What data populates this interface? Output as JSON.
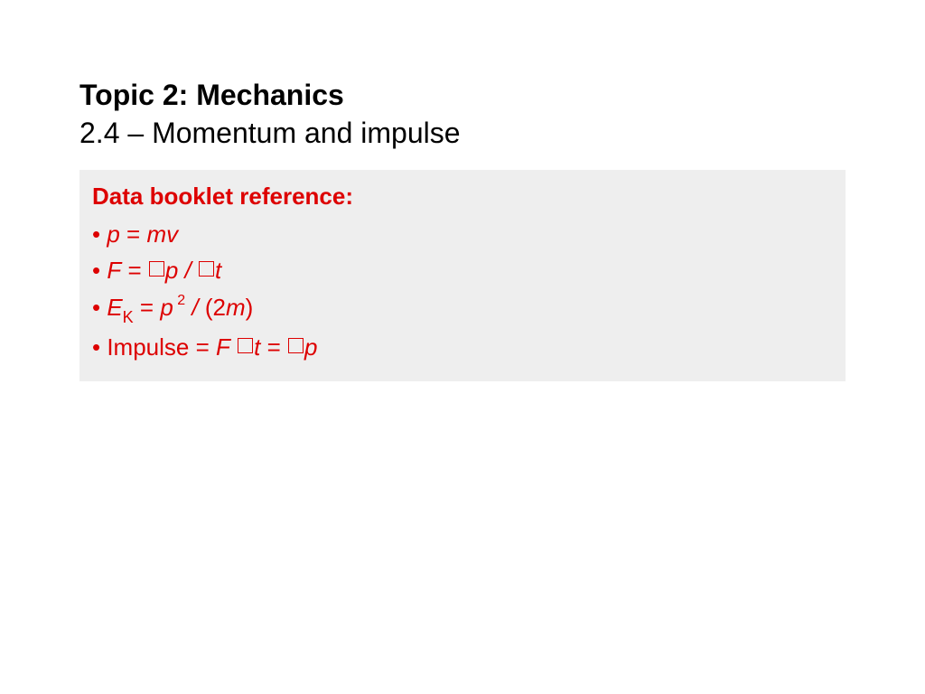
{
  "title": {
    "line1": "Topic 2: Mechanics",
    "line2": "2.4 – Momentum and impulse"
  },
  "box": {
    "heading": "Data booklet reference:",
    "bullets": [
      {
        "prefix": "• ",
        "segments": [
          {
            "text": "p",
            "italic": true
          },
          {
            "text": " = "
          },
          {
            "text": "mv",
            "italic": true
          }
        ]
      },
      {
        "prefix": "• ",
        "segments": [
          {
            "text": "F",
            "italic": true
          },
          {
            "text": " = "
          },
          {
            "glyph": "box"
          },
          {
            "text": "p",
            "italic": true
          },
          {
            "text": " / ",
            "italic": true
          },
          {
            "glyph": "box"
          },
          {
            "text": "t",
            "italic": true
          }
        ]
      },
      {
        "prefix": "• ",
        "segments": [
          {
            "text": "E",
            "italic": true
          },
          {
            "text": "K",
            "sub": true
          },
          {
            "text": " = "
          },
          {
            "text": "p",
            "italic": true
          },
          {
            "text": " 2",
            "sup": true
          },
          {
            "text": " / ",
            "italic": true
          },
          {
            "text": "(2"
          },
          {
            "text": "m",
            "italic": true
          },
          {
            "text": ")"
          }
        ]
      },
      {
        "prefix": " • ",
        "segments": [
          {
            "text": "Impulse = "
          },
          {
            "text": "F",
            "italic": true
          },
          {
            "text": " "
          },
          {
            "glyph": "box"
          },
          {
            "text": "t",
            "italic": true
          },
          {
            "text": " = "
          },
          {
            "glyph": "box"
          },
          {
            "text": "p",
            "italic": true
          }
        ]
      }
    ]
  },
  "colors": {
    "accent": "#dd0000",
    "box_bg": "#eeeeee",
    "text": "#000000",
    "page_bg": "#ffffff"
  },
  "typography": {
    "title_fontsize": 32,
    "body_fontsize": 26,
    "sub_fontsize": 18,
    "sup_fontsize": 16,
    "font_family": "Arial"
  }
}
